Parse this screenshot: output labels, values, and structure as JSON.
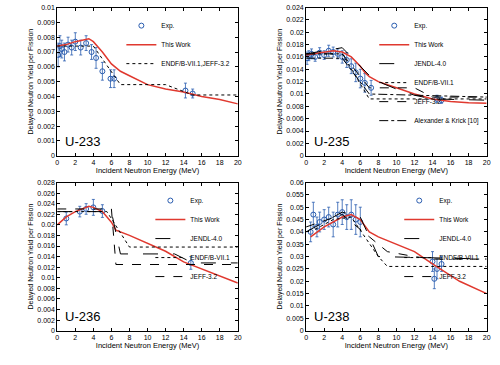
{
  "chart_data": [
    {
      "type": "line",
      "label": "U-233",
      "x_label": "Incident Neutron Energy (MeV)",
      "y_label": "Delayed Neutron Yield per Fission",
      "xlim": [
        0,
        20
      ],
      "xticks": [
        0,
        2,
        4,
        6,
        8,
        10,
        12,
        14,
        16,
        18,
        20
      ],
      "ylim": [
        0,
        0.01
      ],
      "yticks": [
        0,
        0.001,
        0.002,
        0.003,
        0.004,
        0.005,
        0.006,
        0.007,
        0.008,
        0.009,
        0.01
      ],
      "grid": false,
      "legend": "upper right",
      "series": [
        {
          "name": "Exp.",
          "type": "scatter",
          "color": "#2a5db0",
          "marker": "circle-open",
          "x": [
            0.1,
            0.3,
            0.5,
            0.8,
            1.2,
            1.6,
            2.0,
            2.6,
            3.2,
            3.8,
            4.3,
            5.0,
            5.9,
            6.3,
            14.2,
            15.0
          ],
          "values": [
            0.0068,
            0.0074,
            0.0072,
            0.007,
            0.0075,
            0.0073,
            0.0077,
            0.0073,
            0.0076,
            0.007,
            0.0066,
            0.0057,
            0.0052,
            0.0052,
            0.0044,
            0.0042
          ],
          "errors": [
            0.0008,
            0.0007,
            0.0006,
            0.0006,
            0.0005,
            0.0005,
            0.0006,
            0.0005,
            0.0005,
            0.0005,
            0.0007,
            0.0006,
            0.0006,
            0.0006,
            0.0005,
            0.0003
          ]
        },
        {
          "name": "This Work",
          "type": "line",
          "color": "#e0392f",
          "line_style": "solid",
          "x": [
            0,
            1,
            2,
            3,
            3.5,
            4,
            5,
            6,
            7,
            8,
            10,
            12,
            14,
            16,
            18,
            20
          ],
          "values": [
            0.0074,
            0.0075,
            0.0077,
            0.0078,
            0.0079,
            0.0077,
            0.007,
            0.0062,
            0.0057,
            0.0054,
            0.0048,
            0.0045,
            0.0043,
            0.004,
            0.0038,
            0.0035
          ]
        },
        {
          "name": "ENDF/B-VII.1,JEFF-3.2",
          "type": "line",
          "color": "#000000",
          "line_style": "dotted",
          "x": [
            0,
            4,
            7,
            12,
            15,
            20
          ],
          "values": [
            0.0074,
            0.0074,
            0.0048,
            0.0048,
            0.0041,
            0.0041
          ]
        }
      ]
    },
    {
      "type": "line",
      "label": "U-235",
      "x_label": "Incident Neutron Energy (MeV)",
      "y_label": "Delayed Neutron Yield per Fission",
      "xlim": [
        0,
        20
      ],
      "xticks": [
        0,
        2,
        4,
        6,
        8,
        10,
        12,
        14,
        16,
        18,
        20
      ],
      "ylim": [
        0,
        0.024
      ],
      "yticks": [
        0,
        0.002,
        0.004,
        0.006,
        0.008,
        0.01,
        0.012,
        0.014,
        0.016,
        0.018,
        0.02,
        0.022,
        0.024
      ],
      "grid": false,
      "legend": "upper right",
      "series": [
        {
          "name": "Exp.",
          "type": "scatter",
          "color": "#2a5db0",
          "marker": "circle-open",
          "x": [
            0.1,
            0.3,
            0.6,
            1.0,
            1.5,
            2.0,
            2.5,
            3.0,
            3.5,
            4.0,
            4.5,
            5.0,
            5.5,
            6.0,
            6.5,
            7.2,
            14.5,
            15.0
          ],
          "values": [
            0.0158,
            0.0162,
            0.0165,
            0.016,
            0.0167,
            0.0163,
            0.017,
            0.0168,
            0.0165,
            0.016,
            0.0155,
            0.0145,
            0.0135,
            0.0125,
            0.0118,
            0.011,
            0.0092,
            0.009
          ],
          "errors": [
            0.001,
            0.0008,
            0.0008,
            0.0007,
            0.0008,
            0.0007,
            0.0009,
            0.0008,
            0.0008,
            0.001,
            0.0012,
            0.0012,
            0.0015,
            0.0015,
            0.0015,
            0.0012,
            0.0006,
            0.0005
          ]
        },
        {
          "name": "This Work",
          "type": "line",
          "color": "#e0392f",
          "line_style": "solid",
          "x": [
            0,
            1,
            2,
            3,
            4,
            5,
            6,
            6.5,
            7,
            8,
            10,
            12,
            14,
            16,
            18,
            20
          ],
          "values": [
            0.0163,
            0.0165,
            0.0168,
            0.017,
            0.0168,
            0.016,
            0.0145,
            0.0135,
            0.0128,
            0.012,
            0.011,
            0.01,
            0.0092,
            0.0088,
            0.0086,
            0.0085
          ]
        },
        {
          "name": "JENDL-4.0",
          "type": "line",
          "color": "#000000",
          "line_style": "longdash",
          "x": [
            0,
            2,
            4,
            5,
            7,
            8,
            10,
            12,
            14,
            20
          ],
          "values": [
            0.0165,
            0.017,
            0.0175,
            0.016,
            0.013,
            0.012,
            0.0108,
            0.0098,
            0.0092,
            0.009
          ]
        },
        {
          "name": "ENDF/B-VII.1",
          "type": "line",
          "color": "#000000",
          "line_style": "dotted",
          "x": [
            0,
            4,
            7,
            20
          ],
          "values": [
            0.0165,
            0.0165,
            0.0092,
            0.0092
          ]
        },
        {
          "name": "JEFF-3.2",
          "type": "line",
          "color": "#000000",
          "line_style": "dashed",
          "x": [
            0,
            4,
            7,
            12,
            14,
            20
          ],
          "values": [
            0.0165,
            0.0165,
            0.011,
            0.011,
            0.0095,
            0.0095
          ]
        },
        {
          "name": "Alexander & Krick [10]",
          "type": "line",
          "color": "#000000",
          "line_style": "dashdot",
          "x": [
            0,
            4,
            7,
            20
          ],
          "values": [
            0.0158,
            0.0158,
            0.01,
            0.0095
          ]
        }
      ]
    },
    {
      "type": "line",
      "label": "U-236",
      "x_label": "Incident Neutron Energy (MeV)",
      "y_label": "Delayed Neutron Yield per Fission",
      "xlim": [
        0,
        20
      ],
      "xticks": [
        0,
        2,
        4,
        6,
        8,
        10,
        12,
        14,
        16,
        18,
        20
      ],
      "ylim": [
        0,
        0.028
      ],
      "yticks": [
        0,
        0.002,
        0.004,
        0.006,
        0.008,
        0.01,
        0.012,
        0.014,
        0.016,
        0.018,
        0.02,
        0.022,
        0.024,
        0.026,
        0.028
      ],
      "grid": false,
      "legend": "upper right",
      "series": [
        {
          "name": "Exp.",
          "type": "scatter",
          "color": "#2a5db0",
          "marker": "circle-open",
          "x": [
            1.0,
            2.5,
            3.2,
            4.0,
            5.0,
            14.8
          ],
          "values": [
            0.0212,
            0.0225,
            0.023,
            0.0233,
            0.0226,
            0.0128
          ],
          "errors": [
            0.0012,
            0.001,
            0.001,
            0.0015,
            0.0012,
            0.0012
          ]
        },
        {
          "name": "This Work",
          "type": "line",
          "color": "#e0392f",
          "line_style": "solid",
          "x": [
            0,
            1,
            2,
            3,
            3.5,
            4,
            5,
            6,
            6.5,
            8,
            10,
            12,
            14,
            17,
            20
          ],
          "values": [
            0.02,
            0.0215,
            0.0225,
            0.0232,
            0.0235,
            0.0233,
            0.0225,
            0.0205,
            0.019,
            0.018,
            0.0165,
            0.015,
            0.013,
            0.011,
            0.009
          ]
        },
        {
          "name": "JENDL-4.0",
          "type": "line",
          "color": "#000000",
          "line_style": "longdash",
          "x": [
            0,
            6,
            7,
            13,
            15,
            20
          ],
          "values": [
            0.0225,
            0.0225,
            0.0145,
            0.0145,
            0.0128,
            0.0128
          ]
        },
        {
          "name": "ENDF/B-VII.1",
          "type": "line",
          "color": "#000000",
          "line_style": "dotted",
          "x": [
            0,
            5.5,
            8,
            20
          ],
          "values": [
            0.0225,
            0.0225,
            0.0158,
            0.0158
          ]
        },
        {
          "name": "JEFF-3.2",
          "type": "line",
          "color": "#000000",
          "line_style": "dashed",
          "x": [
            0,
            6,
            6.5,
            20
          ],
          "values": [
            0.023,
            0.023,
            0.0125,
            0.0125
          ]
        }
      ]
    },
    {
      "type": "line",
      "label": "U-238",
      "x_label": "Incident Neutron Energy (MeV)",
      "y_label": "Delayed Neutron Yield per Fission",
      "xlim": [
        0,
        20
      ],
      "xticks": [
        0,
        2,
        4,
        6,
        8,
        10,
        12,
        14,
        16,
        18,
        20
      ],
      "ylim": [
        0,
        0.06
      ],
      "yticks": [
        0,
        0.005,
        0.01,
        0.015,
        0.02,
        0.025,
        0.03,
        0.035,
        0.04,
        0.045,
        0.05,
        0.055,
        0.06
      ],
      "grid": false,
      "legend": "upper right",
      "series": [
        {
          "name": "Exp.",
          "type": "scatter",
          "color": "#2a5db0",
          "marker": "circle-open",
          "x": [
            0.5,
            0.8,
            1.2,
            1.5,
            2.0,
            2.5,
            3.0,
            3.5,
            4.0,
            4.5,
            5.0,
            5.5,
            6.0,
            14.0,
            14.2,
            14.5,
            15.0
          ],
          "values": [
            0.04,
            0.047,
            0.042,
            0.044,
            0.045,
            0.046,
            0.043,
            0.047,
            0.048,
            0.046,
            0.047,
            0.045,
            0.044,
            0.028,
            0.021,
            0.025,
            0.027
          ],
          "errors": [
            0.004,
            0.005,
            0.004,
            0.004,
            0.004,
            0.004,
            0.005,
            0.005,
            0.005,
            0.005,
            0.006,
            0.006,
            0.006,
            0.004,
            0.004,
            0.004,
            0.003
          ]
        },
        {
          "name": "This Work",
          "type": "line",
          "color": "#e0392f",
          "line_style": "solid",
          "x": [
            0.5,
            2,
            4,
            5,
            6,
            7,
            8,
            10,
            12,
            14,
            17,
            20
          ],
          "values": [
            0.038,
            0.042,
            0.046,
            0.047,
            0.045,
            0.04,
            0.038,
            0.035,
            0.032,
            0.027,
            0.02,
            0.015
          ]
        },
        {
          "name": "JENDL-4.0",
          "type": "line",
          "color": "#000000",
          "line_style": "longdash",
          "x": [
            0,
            2,
            4,
            6,
            8,
            20
          ],
          "values": [
            0.04,
            0.044,
            0.048,
            0.046,
            0.03,
            0.029
          ]
        },
        {
          "name": "ENDF/B-VII.1",
          "type": "line",
          "color": "#000000",
          "line_style": "dotted",
          "x": [
            1,
            3,
            5,
            8,
            9,
            20
          ],
          "values": [
            0.041,
            0.045,
            0.046,
            0.03,
            0.026,
            0.026
          ]
        },
        {
          "name": "JEFF-3.2",
          "type": "line",
          "color": "#000000",
          "line_style": "dashed",
          "x": [
            0,
            4,
            7,
            9,
            12,
            14,
            20
          ],
          "values": [
            0.042,
            0.047,
            0.038,
            0.032,
            0.03,
            0.029,
            0.029
          ]
        }
      ]
    }
  ]
}
